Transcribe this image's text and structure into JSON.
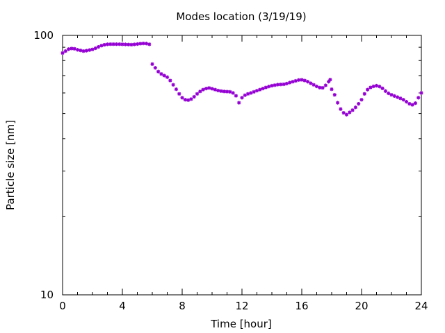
{
  "chart_data": {
    "type": "scatter",
    "title": "Modes location (3/19/19)",
    "xlabel": "Time [hour]",
    "ylabel": "Particle size [nm]",
    "xlim": [
      0,
      24
    ],
    "ylim": [
      10,
      100
    ],
    "yscale": "log",
    "grid": false,
    "legend": "none",
    "marker": "asterisk",
    "color": "#9400d3",
    "x_ticks": [
      0,
      4,
      8,
      12,
      16,
      20,
      24
    ],
    "x_tick_labels": [
      "0",
      "4",
      "8",
      "12",
      "16",
      "20",
      "24"
    ],
    "y_ticks": [
      10,
      100
    ],
    "y_tick_labels": [
      "10",
      "100"
    ],
    "series": [
      {
        "points": [
          [
            0.0,
            85.5
          ],
          [
            0.2,
            87.0
          ],
          [
            0.4,
            88.5
          ],
          [
            0.6,
            89.0
          ],
          [
            0.8,
            88.8
          ],
          [
            1.0,
            88.0
          ],
          [
            1.2,
            87.5
          ],
          [
            1.4,
            87.0
          ],
          [
            1.6,
            87.3
          ],
          [
            1.8,
            87.8
          ],
          [
            2.0,
            88.3
          ],
          [
            2.2,
            89.2
          ],
          [
            2.4,
            90.3
          ],
          [
            2.6,
            91.3
          ],
          [
            2.8,
            92.0
          ],
          [
            3.0,
            92.4
          ],
          [
            3.2,
            92.5
          ],
          [
            3.4,
            92.5
          ],
          [
            3.6,
            92.5
          ],
          [
            3.8,
            92.5
          ],
          [
            4.0,
            92.4
          ],
          [
            4.2,
            92.3
          ],
          [
            4.4,
            92.2
          ],
          [
            4.6,
            92.1
          ],
          [
            4.8,
            92.3
          ],
          [
            5.0,
            92.6
          ],
          [
            5.2,
            92.9
          ],
          [
            5.4,
            93.1
          ],
          [
            5.6,
            93.0
          ],
          [
            5.8,
            92.4
          ],
          [
            6.0,
            77.5
          ],
          [
            6.2,
            75.0
          ],
          [
            6.4,
            72.5
          ],
          [
            6.6,
            71.0
          ],
          [
            6.8,
            70.0
          ],
          [
            7.0,
            69.0
          ],
          [
            7.2,
            67.0
          ],
          [
            7.4,
            64.5
          ],
          [
            7.6,
            62.0
          ],
          [
            7.8,
            59.5
          ],
          [
            8.0,
            57.5
          ],
          [
            8.2,
            56.5
          ],
          [
            8.4,
            56.3
          ],
          [
            8.6,
            56.8
          ],
          [
            8.8,
            58.0
          ],
          [
            9.0,
            59.5
          ],
          [
            9.2,
            60.8
          ],
          [
            9.4,
            61.8
          ],
          [
            9.6,
            62.4
          ],
          [
            9.8,
            62.7
          ],
          [
            10.0,
            62.3
          ],
          [
            10.2,
            61.8
          ],
          [
            10.4,
            61.3
          ],
          [
            10.6,
            61.0
          ],
          [
            10.8,
            60.8
          ],
          [
            11.0,
            60.7
          ],
          [
            11.2,
            60.6
          ],
          [
            11.4,
            60.0
          ],
          [
            11.6,
            58.5
          ],
          [
            11.8,
            55.0
          ],
          [
            12.0,
            57.5
          ],
          [
            12.2,
            58.8
          ],
          [
            12.4,
            59.5
          ],
          [
            12.6,
            60.0
          ],
          [
            12.8,
            60.6
          ],
          [
            13.0,
            61.2
          ],
          [
            13.2,
            61.8
          ],
          [
            13.4,
            62.4
          ],
          [
            13.6,
            63.0
          ],
          [
            13.8,
            63.5
          ],
          [
            14.0,
            64.0
          ],
          [
            14.2,
            64.3
          ],
          [
            14.4,
            64.6
          ],
          [
            14.6,
            64.7
          ],
          [
            14.8,
            64.8
          ],
          [
            15.0,
            65.2
          ],
          [
            15.2,
            65.8
          ],
          [
            15.4,
            66.3
          ],
          [
            15.6,
            66.8
          ],
          [
            15.8,
            67.3
          ],
          [
            16.0,
            67.4
          ],
          [
            16.2,
            67.0
          ],
          [
            16.4,
            66.3
          ],
          [
            16.6,
            65.4
          ],
          [
            16.8,
            64.5
          ],
          [
            17.0,
            63.6
          ],
          [
            17.2,
            62.9
          ],
          [
            17.4,
            62.8
          ],
          [
            17.6,
            64.2
          ],
          [
            17.8,
            66.3
          ],
          [
            17.9,
            67.5
          ],
          [
            18.0,
            62.0
          ],
          [
            18.2,
            59.0
          ],
          [
            18.4,
            55.0
          ],
          [
            18.6,
            52.0
          ],
          [
            18.8,
            50.3
          ],
          [
            19.0,
            49.5
          ],
          [
            19.2,
            50.5
          ],
          [
            19.4,
            51.5
          ],
          [
            19.6,
            52.8
          ],
          [
            19.8,
            54.5
          ],
          [
            20.0,
            56.5
          ],
          [
            20.2,
            59.5
          ],
          [
            20.4,
            61.8
          ],
          [
            20.6,
            63.0
          ],
          [
            20.8,
            63.6
          ],
          [
            21.0,
            64.0
          ],
          [
            21.2,
            63.5
          ],
          [
            21.4,
            62.5
          ],
          [
            21.6,
            61.0
          ],
          [
            21.8,
            59.8
          ],
          [
            22.0,
            59.0
          ],
          [
            22.2,
            58.4
          ],
          [
            22.4,
            57.8
          ],
          [
            22.6,
            57.2
          ],
          [
            22.8,
            56.5
          ],
          [
            23.0,
            55.5
          ],
          [
            23.2,
            54.5
          ],
          [
            23.4,
            54.0
          ],
          [
            23.6,
            54.8
          ],
          [
            23.8,
            57.5
          ],
          [
            24.0,
            60.0
          ]
        ]
      }
    ]
  }
}
